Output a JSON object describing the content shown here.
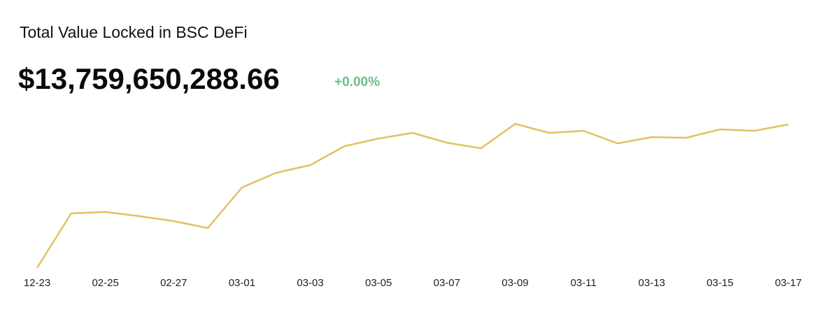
{
  "chart_data": {
    "type": "line",
    "title": "Total Value Locked in BSC DeFi",
    "value_text": "$13,759,650,288.66",
    "change_text": "+0.00%",
    "change_color": "#6cbf86",
    "categories": [
      "12-23",
      null,
      "02-25",
      null,
      "02-27",
      null,
      "03-01",
      null,
      "03-03",
      null,
      "03-05",
      null,
      "03-07",
      null,
      "03-09",
      null,
      "03-11",
      null,
      "03-13",
      null,
      "03-15",
      null,
      "03-17"
    ],
    "values": [
      17,
      95,
      97,
      91,
      84,
      74,
      132,
      153,
      164,
      191,
      202,
      210,
      196,
      188,
      223,
      210,
      213,
      195,
      204,
      203,
      215,
      213,
      222
    ],
    "color": "#e2c163",
    "ylim": [
      0,
      240
    ]
  }
}
